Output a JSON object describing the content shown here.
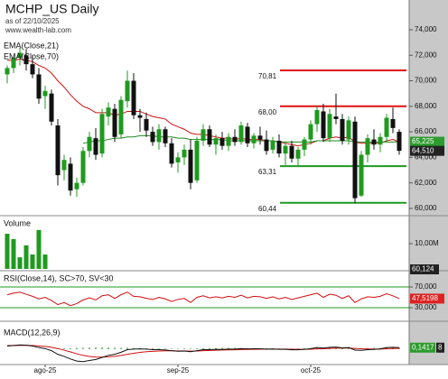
{
  "chart_data": {
    "type": "candlestick",
    "title": "MCHP_US Daily",
    "subtitle": "as of 22/10/2025",
    "source": "www.wealth-lab.com",
    "categories": [
      null,
      null,
      null,
      null,
      null,
      null,
      "ago-25",
      null,
      null,
      null,
      null,
      null,
      null,
      null,
      null,
      null,
      null,
      null,
      null,
      null,
      null,
      null,
      null,
      null,
      null,
      null,
      null,
      "sep-25",
      null,
      null,
      null,
      null,
      null,
      null,
      null,
      null,
      null,
      null,
      null,
      null,
      null,
      null,
      null,
      null,
      null,
      null,
      null,
      null,
      "oct-25",
      null,
      null,
      null,
      null,
      null,
      null,
      null,
      null,
      null,
      null,
      null,
      null,
      null,
      null
    ],
    "price": {
      "ylim": [
        59.5,
        76.33
      ],
      "yticks": [
        {
          "value": 74,
          "label": "74,000"
        },
        {
          "value": 72,
          "label": "72,000"
        },
        {
          "value": 70,
          "label": "70,000"
        },
        {
          "value": 68,
          "label": "68,000"
        },
        {
          "value": 66,
          "label": "66,000"
        },
        {
          "value": 64,
          "label": "64,000"
        },
        {
          "value": 62,
          "label": "62,000"
        },
        {
          "value": 60,
          "label": "60,000"
        }
      ],
      "up_color": "#1f9a1f",
      "down_color": "#111111",
      "candles": {
        "open": [
          70.5,
          71.0,
          71.8,
          72.0,
          71.3,
          70.5,
          68.8,
          69.0,
          66.5,
          63.0,
          63.5,
          61.5,
          62.0,
          64.5,
          65.5,
          64.3,
          67.2,
          67.8,
          65.8,
          68.4,
          70.0,
          67.3,
          67.0,
          66.0,
          65.2,
          66.2,
          65.1,
          63.6,
          64.0,
          64.6,
          62.2,
          65.3,
          66.2,
          65.0,
          65.5,
          64.9,
          65.6,
          65.2,
          66.4,
          65.1,
          65.7,
          65.4,
          64.6,
          65.3,
          64.3,
          64.9,
          63.9,
          64.6,
          65.4,
          66.6,
          67.6,
          65.5,
          67.2,
          67.0,
          65.4,
          66.8,
          61.0,
          64.2,
          65.4,
          65.0,
          65.6,
          67.0,
          66.0
        ],
        "high": [
          71.2,
          72.0,
          72.6,
          72.5,
          72.0,
          71.0,
          69.6,
          69.3,
          67.0,
          64.2,
          64.0,
          62.4,
          64.8,
          66.0,
          66.3,
          67.8,
          68.3,
          68.2,
          68.8,
          70.8,
          70.6,
          67.8,
          67.5,
          66.4,
          66.6,
          66.4,
          65.5,
          64.4,
          65.0,
          65.4,
          65.6,
          66.6,
          66.5,
          65.8,
          66.0,
          65.9,
          66.2,
          66.8,
          66.7,
          65.9,
          66.4,
          66.1,
          65.6,
          65.8,
          65.2,
          65.3,
          64.8,
          65.6,
          66.9,
          68.0,
          68.2,
          67.8,
          69.0,
          67.4,
          67.2,
          67.2,
          64.5,
          65.8,
          66.2,
          65.9,
          67.4,
          67.9,
          66.2
        ],
        "low": [
          69.8,
          70.6,
          71.2,
          70.8,
          70.2,
          68.2,
          67.8,
          66.5,
          61.8,
          62.2,
          61.0,
          60.9,
          61.8,
          64.0,
          63.8,
          64.0,
          66.5,
          65.2,
          65.5,
          67.9,
          67.0,
          66.0,
          65.6,
          64.9,
          64.6,
          64.8,
          63.2,
          62.8,
          63.4,
          61.5,
          62.0,
          64.9,
          64.8,
          64.2,
          64.6,
          64.5,
          64.9,
          65.0,
          64.8,
          64.7,
          65.0,
          64.2,
          64.3,
          64.0,
          63.4,
          63.6,
          63.3,
          64.1,
          65.0,
          66.0,
          65.2,
          65.2,
          66.6,
          65.0,
          65.0,
          60.4,
          60.9,
          63.6,
          64.6,
          64.4,
          65.2,
          65.9,
          64.2
        ],
        "close": [
          71.0,
          71.8,
          72.2,
          71.3,
          70.5,
          68.6,
          69.2,
          66.8,
          62.6,
          63.8,
          61.4,
          62.0,
          64.5,
          65.6,
          64.2,
          67.4,
          67.9,
          65.6,
          68.5,
          70.0,
          67.3,
          67.1,
          66.1,
          65.2,
          66.2,
          65.1,
          63.5,
          64.0,
          64.6,
          62.0,
          65.3,
          66.2,
          65.0,
          65.5,
          64.9,
          65.6,
          65.2,
          66.5,
          65.1,
          65.7,
          65.4,
          64.5,
          65.3,
          64.3,
          64.9,
          63.9,
          64.6,
          65.4,
          66.6,
          67.7,
          65.5,
          67.4,
          67.0,
          65.3,
          66.9,
          60.8,
          64.2,
          65.5,
          65.0,
          65.6,
          67.1,
          66.3,
          64.51
        ]
      },
      "lines": [
        {
          "name": "EMA(Close,21)",
          "color": "#d01010",
          "values": [
            71.6,
            71.6,
            71.7,
            71.6,
            71.5,
            71.2,
            71.0,
            70.6,
            70.0,
            69.5,
            68.9,
            68.4,
            68.0,
            67.8,
            67.5,
            67.5,
            67.5,
            67.3,
            67.4,
            67.6,
            67.6,
            67.6,
            67.4,
            67.2,
            67.1,
            67.0,
            66.6,
            66.4,
            66.2,
            65.9,
            65.8,
            65.8,
            65.7,
            65.6,
            65.5,
            65.5,
            65.4,
            65.5,
            65.4,
            65.4,
            65.4,
            65.3,
            65.3,
            65.2,
            65.1,
            65.0,
            64.9,
            65.0,
            65.1,
            65.3,
            65.3,
            65.5,
            65.6,
            65.5,
            65.6,
            65.2,
            65.1,
            65.1,
            65.1,
            65.1,
            65.3,
            65.4,
            65.2
          ]
        },
        {
          "name": "EMA(Close,70)",
          "color": "#1f8a1f",
          "values": [
            null,
            null,
            null,
            null,
            null,
            null,
            null,
            null,
            null,
            null,
            null,
            null,
            65.1,
            65.2,
            65.3,
            65.3,
            65.4,
            65.5,
            65.5,
            65.6,
            65.6,
            65.7,
            65.7,
            65.7,
            65.6,
            65.6,
            65.6,
            65.5,
            65.5,
            65.4,
            65.4,
            65.4,
            65.4,
            65.4,
            65.4,
            65.3,
            65.3,
            65.3,
            65.3,
            65.3,
            65.3,
            65.3,
            65.3,
            65.2,
            65.2,
            65.2,
            65.2,
            65.2,
            65.2,
            65.3,
            65.3,
            65.3,
            65.3,
            65.3,
            65.3,
            65.2,
            65.2,
            65.2,
            65.2,
            65.2,
            65.2,
            65.2,
            65.225
          ]
        }
      ],
      "levels": [
        {
          "label": "70,81",
          "value": 70.81,
          "color": "#e01010"
        },
        {
          "label": "68,00",
          "value": 68.0,
          "color": "#e01010"
        },
        {
          "label": "63,31",
          "value": 63.31,
          "color": "#1f9a1f"
        },
        {
          "label": "60,44",
          "value": 60.44,
          "color": "#1f9a1f"
        }
      ],
      "markers": [
        {
          "label": "65,225",
          "value": 65.225,
          "color": "#2e9b2e"
        },
        {
          "label": "64,510",
          "value": 64.51,
          "color": "#222222"
        }
      ]
    },
    "volume": {
      "label": "Volume",
      "ylim": [
        0,
        20.7
      ],
      "yticks": [
        {
          "value": 10,
          "label": "10,00M"
        }
      ],
      "color": "#1f9a1f",
      "values": [
        13.9,
        11.8,
        4.6,
        9.3,
        5.7,
        15.4,
        5.7,
        null,
        null,
        null,
        null,
        null,
        null,
        null,
        null,
        null,
        null,
        null,
        null,
        null,
        null,
        null,
        null,
        null,
        null,
        null,
        null,
        null,
        null,
        null,
        null,
        null,
        null,
        null,
        null,
        null,
        null,
        null,
        null,
        null,
        null,
        null,
        null,
        null,
        null,
        null,
        null,
        null,
        null,
        null,
        null,
        null,
        null,
        null,
        null,
        null,
        null,
        null,
        null,
        null,
        null,
        null,
        null
      ],
      "current_label": "60,124",
      "current_color": "#222222"
    },
    "rsi": {
      "label": "RSI(Close,14), SC>70, SV<30",
      "ylim": [
        5.7,
        97.8
      ],
      "yticks": [
        {
          "value": 70,
          "label": "70,000"
        },
        {
          "value": 30,
          "label": "30,000"
        }
      ],
      "level_color": "#1f9a1f",
      "color": "#d01010",
      "values": [
        55,
        58,
        60,
        56,
        52,
        47,
        50,
        44,
        36,
        40,
        34,
        38,
        45,
        49,
        45,
        53,
        55,
        48,
        55,
        60,
        52,
        51,
        48,
        46,
        50,
        47,
        42,
        46,
        48,
        40,
        50,
        53,
        49,
        51,
        49,
        52,
        50,
        54,
        49,
        52,
        51,
        48,
        51,
        47,
        50,
        46,
        49,
        52,
        55,
        58,
        50,
        56,
        54,
        48,
        53,
        40,
        47,
        51,
        50,
        52,
        57,
        53,
        47.5198
      ],
      "marker": {
        "label": "47,5198",
        "value": 47.5198,
        "color": "#dd2222"
      }
    },
    "macd": {
      "label": "MACD(12,26,9)",
      "ylim": [
        -1.4,
        2.6
      ],
      "macd": {
        "color": "#111111",
        "values": [
          0.3,
          0.35,
          0.4,
          0.38,
          0.3,
          0.15,
          0.05,
          -0.15,
          -0.5,
          -0.7,
          -0.95,
          -1.15,
          -1.2,
          -1.1,
          -1.0,
          -0.8,
          -0.6,
          -0.5,
          -0.3,
          -0.05,
          0.0,
          0.02,
          0.0,
          -0.05,
          -0.05,
          -0.08,
          -0.15,
          -0.2,
          -0.18,
          -0.25,
          -0.15,
          -0.05,
          -0.05,
          -0.02,
          -0.03,
          0.0,
          0.0,
          0.05,
          0.02,
          0.03,
          0.03,
          0.0,
          0.01,
          -0.02,
          -0.02,
          -0.06,
          -0.06,
          -0.02,
          0.05,
          0.15,
          0.1,
          0.18,
          0.2,
          0.12,
          0.15,
          -0.1,
          -0.12,
          -0.05,
          -0.03,
          0.02,
          0.15,
          0.18,
          0.14
        ]
      },
      "signal": {
        "color": "#d01010",
        "values": [
          0.35,
          0.35,
          0.36,
          0.37,
          0.35,
          0.31,
          0.26,
          0.18,
          0.05,
          -0.1,
          -0.27,
          -0.45,
          -0.6,
          -0.7,
          -0.76,
          -0.77,
          -0.74,
          -0.69,
          -0.61,
          -0.5,
          -0.4,
          -0.31,
          -0.25,
          -0.21,
          -0.18,
          -0.16,
          -0.16,
          -0.17,
          -0.17,
          -0.19,
          -0.18,
          -0.15,
          -0.13,
          -0.11,
          -0.09,
          -0.07,
          -0.06,
          -0.04,
          -0.03,
          -0.02,
          -0.01,
          -0.01,
          0.0,
          0.0,
          0.0,
          -0.01,
          -0.02,
          -0.02,
          -0.01,
          0.02,
          0.04,
          0.07,
          0.09,
          0.1,
          0.11,
          0.07,
          0.03,
          0.01,
          0.0,
          0.0,
          0.03,
          0.06,
          0.08
        ]
      },
      "histogram": {
        "color": "#2e9b2e",
        "values": [
          null,
          null,
          null,
          null,
          null,
          null,
          null,
          null,
          0.05,
          0.08,
          0.1,
          0.12,
          0.12,
          0.14,
          0.15,
          0.15,
          0.14,
          0.13,
          0.12,
          0.12,
          0.1,
          0.1,
          0.08,
          0.08,
          0.06,
          0.06,
          0.05,
          0.05,
          0.06,
          0.06,
          0.08,
          0.1,
          0.1,
          0.1,
          0.12,
          0.12,
          0.12,
          0.1,
          0.1,
          0.1,
          0.08,
          0.08,
          0.06,
          0.06,
          0.05,
          0.05,
          0.06,
          0.08,
          0.1,
          0.12,
          0.14,
          0.14,
          0.12,
          0.1,
          0.08,
          0.08,
          0.1,
          0.1,
          0.12,
          0.12,
          0.14,
          0.14,
          0.1417
        ]
      },
      "marker": {
        "label": "0,1417",
        "value": 0.1417,
        "color": "#2e9b2e"
      },
      "extra_label": "8",
      "extra_color": "#222222"
    }
  }
}
